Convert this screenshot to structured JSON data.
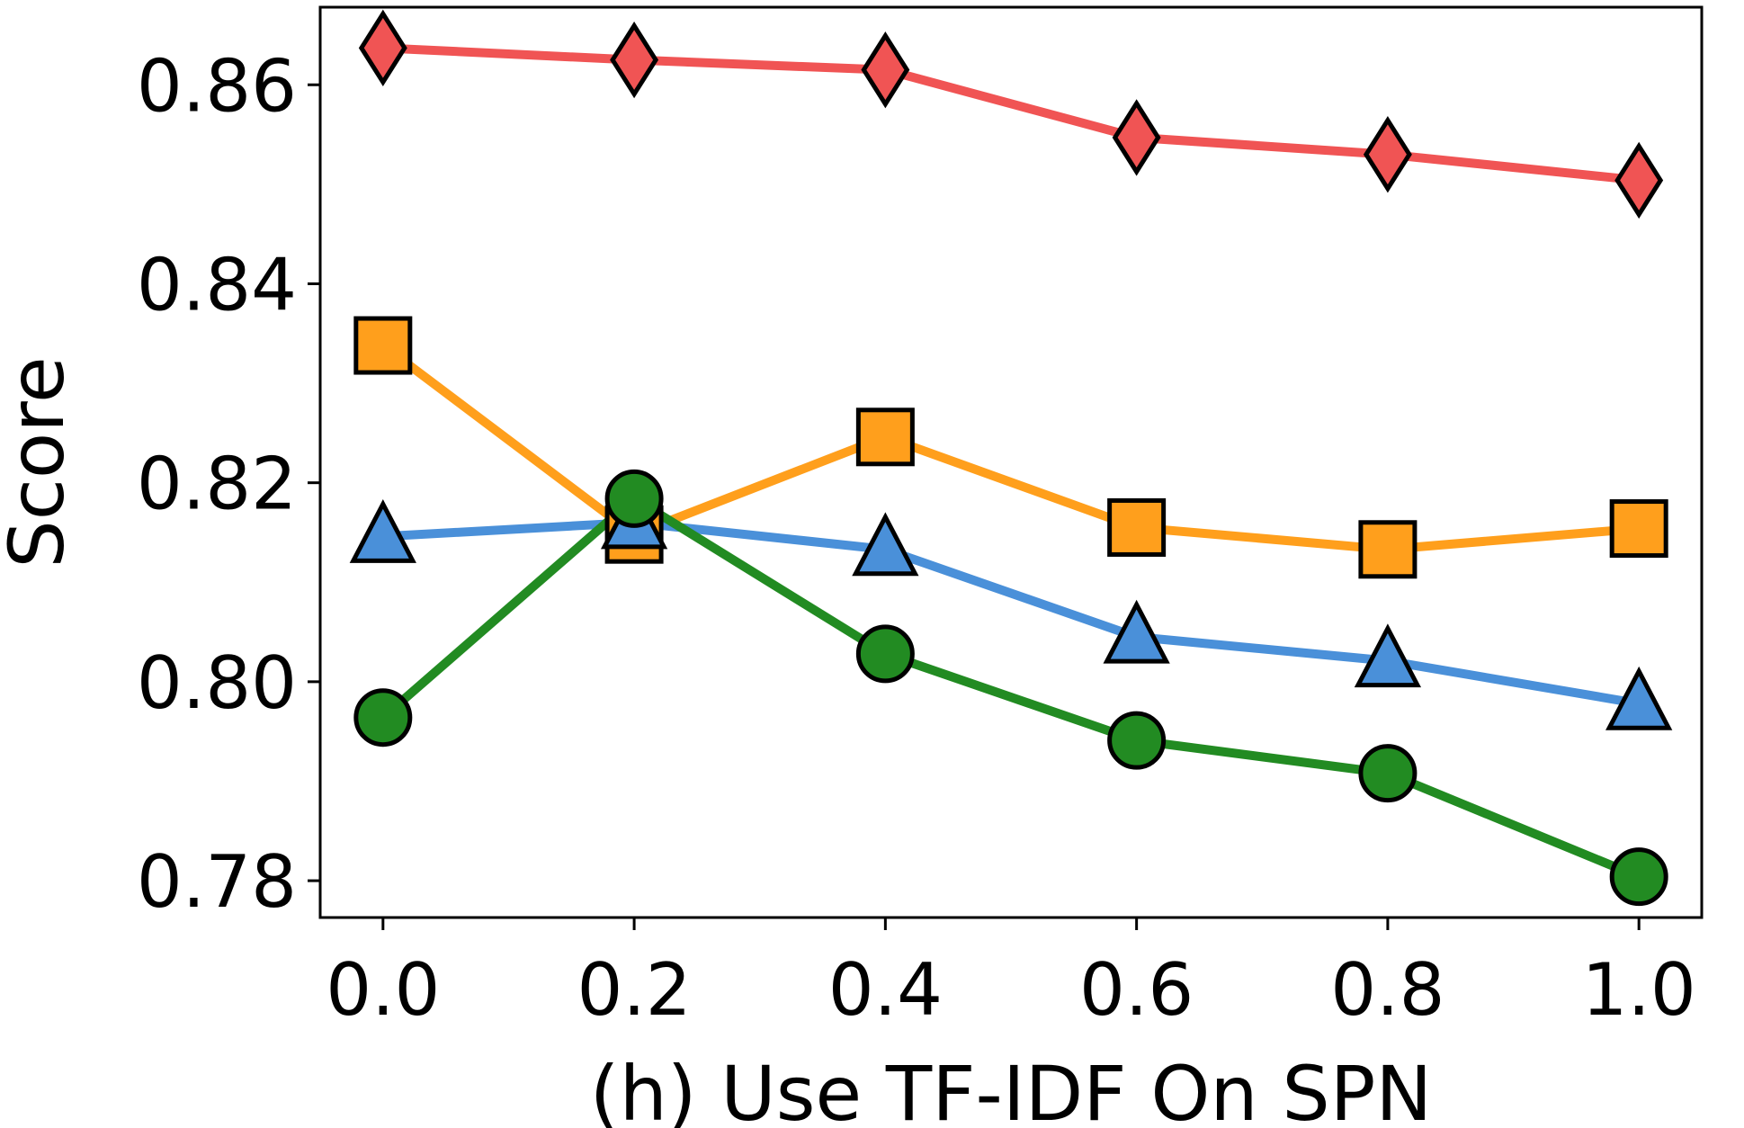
{
  "chart_data": {
    "type": "line",
    "title": "",
    "xlabel": "(h) Use TF-IDF On SPN",
    "ylabel": "Score",
    "x": [
      0.0,
      0.2,
      0.4,
      0.6,
      0.8,
      1.0
    ],
    "x_tick_labels": [
      "0.0",
      "0.2",
      "0.4",
      "0.6",
      "0.8",
      "1.0"
    ],
    "y_ticks": [
      0.78,
      0.8,
      0.82,
      0.84,
      0.86
    ],
    "y_tick_labels": [
      "0.78",
      "0.80",
      "0.82",
      "0.84",
      "0.86"
    ],
    "xlim": [
      -0.05,
      1.05
    ],
    "ylim": [
      0.7763,
      0.8678
    ],
    "grid": false,
    "series": [
      {
        "name": "red-diamond",
        "color": "#F05454",
        "marker": "diamond",
        "values": [
          0.8637,
          0.8625,
          0.8615,
          0.8547,
          0.853,
          0.8504
        ]
      },
      {
        "name": "orange-square",
        "color": "#FF9F1C",
        "marker": "square",
        "values": [
          0.8338,
          0.8148,
          0.8246,
          0.8155,
          0.8133,
          0.8154
        ]
      },
      {
        "name": "blue-triangle",
        "color": "#4A90D9",
        "marker": "triangle",
        "values": [
          0.8146,
          0.816,
          0.8133,
          0.8045,
          0.8021,
          0.7978
        ]
      },
      {
        "name": "green-circle",
        "color": "#228B22",
        "marker": "circle",
        "values": [
          0.7964,
          0.8184,
          0.8028,
          0.7941,
          0.7908,
          0.7804
        ]
      }
    ]
  }
}
